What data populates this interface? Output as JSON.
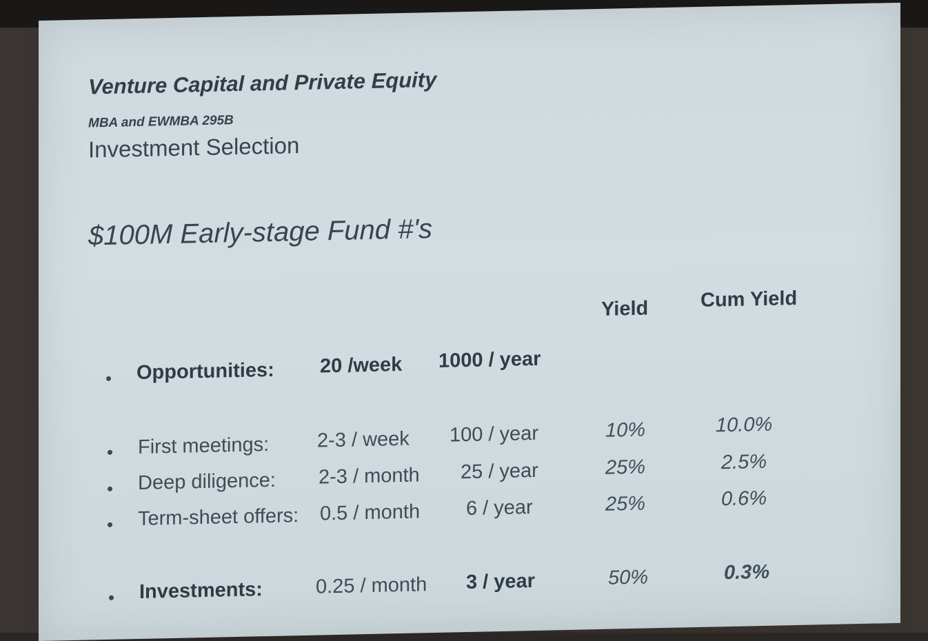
{
  "slide": {
    "course_title": "Venture Capital and Private Equity",
    "course_code": "MBA and EWMBA 295B",
    "section": "Investment Selection",
    "heading": "$100M Early-stage Fund #'s",
    "columns": {
      "yield": "Yield",
      "cum_yield": "Cum Yield"
    },
    "rows": [
      {
        "label": "Opportunities:",
        "rate": "20 /week",
        "annual": "1000 / year",
        "yield": "",
        "cum_yield": ""
      },
      {
        "label": "First meetings:",
        "rate": "2-3 / week",
        "annual": "100 / year",
        "yield": "10%",
        "cum_yield": "10.0%"
      },
      {
        "label": "Deep diligence:",
        "rate": "2-3 / month",
        "annual": "25 / year",
        "yield": "25%",
        "cum_yield": "2.5%"
      },
      {
        "label": "Term-sheet offers:",
        "rate": "0.5 / month",
        "annual": "6 / year",
        "yield": "25%",
        "cum_yield": "0.6%"
      },
      {
        "label": "Investments:",
        "rate": "0.25 / month",
        "annual": "3 / year",
        "yield": "50%",
        "cum_yield": "0.3%"
      }
    ]
  }
}
